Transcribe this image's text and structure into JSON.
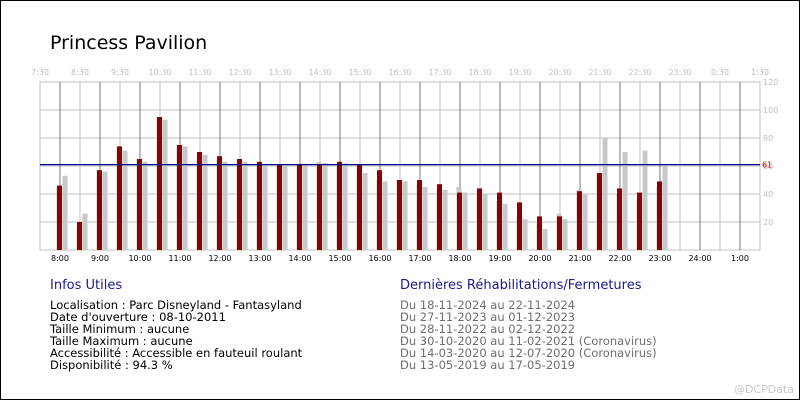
{
  "title": "Princess Pavilion",
  "chart_data": {
    "type": "bar",
    "ylim": [
      0,
      120
    ],
    "y_ticks": [
      20,
      40,
      60,
      80,
      100,
      120
    ],
    "reference_line": {
      "value": 61,
      "label": "61"
    },
    "x_ticks_bottom": [
      "8:00",
      "9:00",
      "10:00",
      "11:00",
      "12:00",
      "13:00",
      "14:00",
      "15:00",
      "16:00",
      "17:00",
      "18:00",
      "19:00",
      "20:00",
      "21:00",
      "22:00",
      "23:00",
      "24:00",
      "1:00"
    ],
    "x_ticks_top": [
      "7:30",
      "8:30",
      "9:30",
      "10:30",
      "11:30",
      "12:30",
      "13:30",
      "14:30",
      "15:30",
      "16:30",
      "17:30",
      "18:30",
      "19:30",
      "20:30",
      "21:30",
      "22:30",
      "23:30",
      "0:30",
      "1:30"
    ],
    "series": [
      {
        "values": [
          45,
          17,
          57,
          74,
          65,
          95,
          75,
          66,
          64,
          64,
          60,
          60,
          60,
          63,
          60,
          58,
          50,
          50,
          47,
          43,
          45,
          42,
          35,
          24,
          19,
          26,
          43,
          52,
          40,
          36,
          45
        ]
      },
      {
        "values": [
          53,
          26,
          56,
          71,
          63,
          93,
          74,
          68,
          63,
          63,
          60,
          60,
          61,
          62,
          62,
          55,
          49,
          49,
          45,
          43,
          41,
          40,
          33,
          22,
          15,
          22,
          40,
          80,
          70,
          71,
          60
        ]
      },
      {
        "values": [
          46,
          20,
          57,
          74,
          65,
          95,
          75,
          70,
          67,
          65,
          63,
          61,
          61,
          61,
          63,
          61,
          57,
          50,
          50,
          47,
          41,
          44,
          41,
          34,
          24,
          24,
          42,
          55,
          44,
          41,
          49
        ]
      }
    ],
    "colors": {
      "main": "#8b0000",
      "past": "#c8c8c8",
      "grid": "#c0c0c0",
      "reference": "#00008b",
      "axis_text": "#000000",
      "top_text": "#bdbdbd"
    }
  },
  "info": {
    "title": "Infos Utiles",
    "lines": [
      "Localisation : Parc Disneyland - Fantasyland",
      "Date d'ouverture : 08-10-2011",
      "Taille Minimum : aucune",
      "Taille Maximum : aucune",
      "Accessibilité : Accessible en fauteuil roulant",
      "Disponibilité : 94.3 %"
    ]
  },
  "rehab": {
    "title": "Dernières Réhabilitations/Fermetures",
    "lines": [
      "Du 18-11-2024 au 22-11-2024",
      "Du 27-11-2023 au 01-12-2023",
      "Du 28-11-2022 au 02-12-2022",
      "Du 30-10-2020 au 11-02-2021 (Coronavirus)",
      "Du 14-03-2020 au 12-07-2020 (Coronavirus)",
      "Du 13-05-2019 au 17-05-2019"
    ]
  },
  "watermark": "@DCPData"
}
